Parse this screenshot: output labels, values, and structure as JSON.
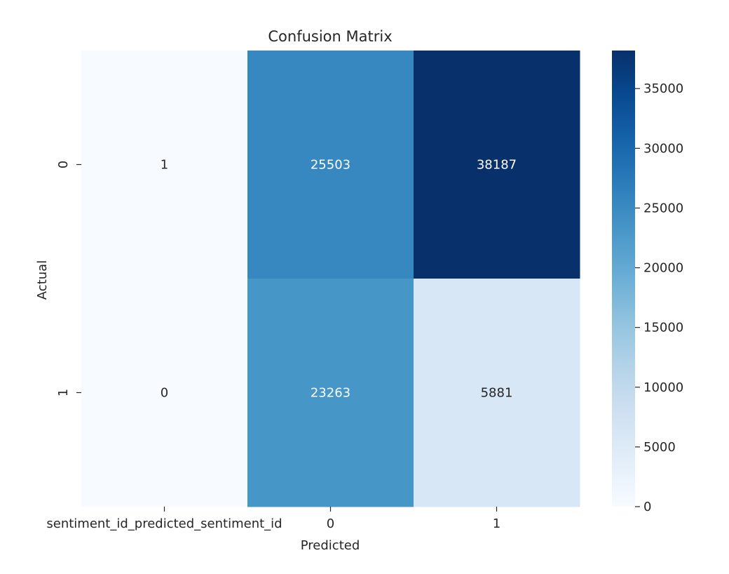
{
  "chart_data": {
    "type": "heatmap",
    "title": "Confusion Matrix",
    "xlabel": "Predicted",
    "ylabel": "Actual",
    "x_categories": [
      "sentiment_id_predicted_sentiment_id",
      "0",
      "1"
    ],
    "y_categories": [
      "0",
      "1"
    ],
    "values": [
      [
        1,
        25503,
        38187
      ],
      [
        0,
        23263,
        5881
      ]
    ],
    "colorbar": {
      "colormap": "Blues",
      "range": [
        0,
        38187
      ],
      "ticks": [
        0,
        5000,
        10000,
        15000,
        20000,
        25000,
        30000,
        35000
      ]
    },
    "annotations": true,
    "grid": false,
    "colors": {
      "low": "#f7fbff",
      "high": "#08306b",
      "text_dark": "#262626",
      "text_light": "#ffffff"
    }
  }
}
